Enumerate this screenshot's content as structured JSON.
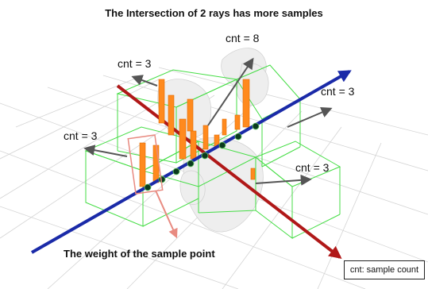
{
  "title": "The Intersection of 2 rays has more samples",
  "counts": [
    "cnt = 8",
    "cnt = 3",
    "cnt = 3",
    "cnt = 3",
    "cnt = 3"
  ],
  "caption": "The weight of the sample point",
  "legend": "cnt: sample count",
  "colors": {
    "ray_blue": "#1a2aa8",
    "ray_red": "#b01818",
    "bars": "#ff8a1e",
    "boxes": "#44dd44",
    "arrows": "#555555",
    "weight_arrow": "#e88a80",
    "grid": "#d4d4d4"
  }
}
